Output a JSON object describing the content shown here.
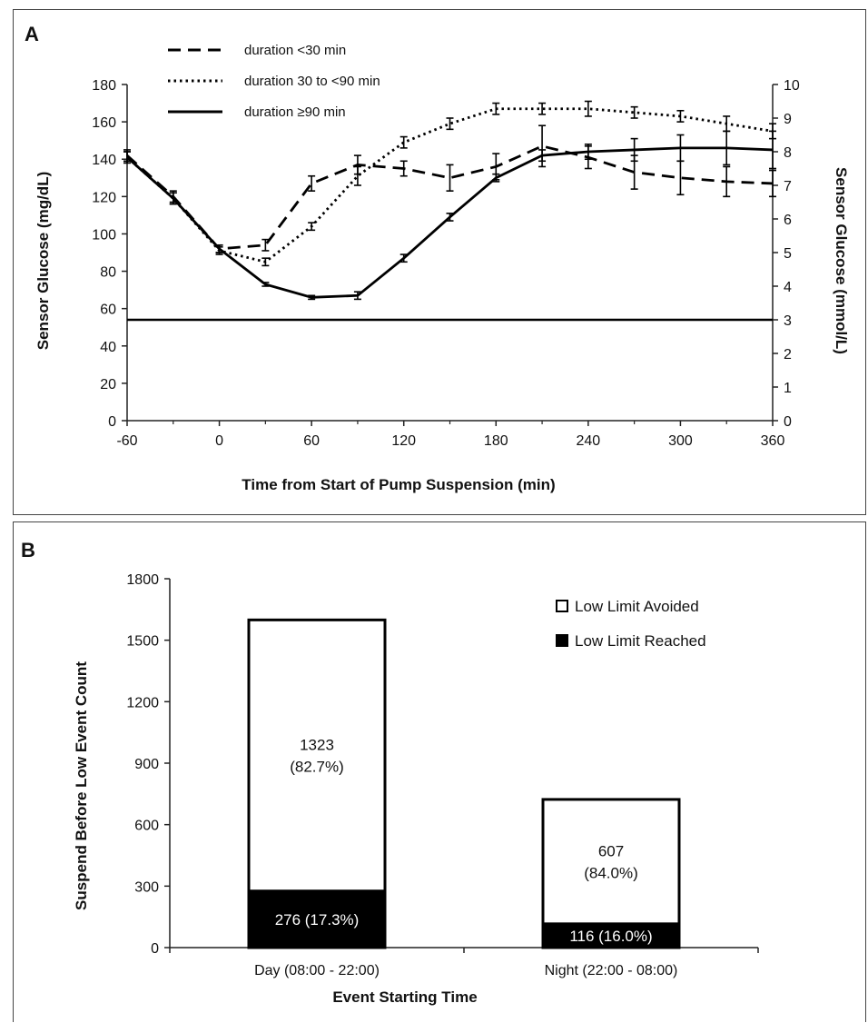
{
  "chart_data": [
    {
      "panel_label": "A",
      "type": "line",
      "xlabel": "Time from Start of Pump Suspension (min)",
      "ylabel": "Sensor Glucose (mg/dL)",
      "y2label": "Sensor Glucose (mmol/L)",
      "xlim": [
        -60,
        360
      ],
      "ylim": [
        0,
        180
      ],
      "y2lim": [
        0,
        10
      ],
      "xticks": [
        "-60",
        "0",
        "60",
        "120",
        "180",
        "240",
        "300",
        "360"
      ],
      "yticks": [
        "0",
        "20",
        "40",
        "60",
        "80",
        "100",
        "120",
        "140",
        "160",
        "180"
      ],
      "y2ticks": [
        "0",
        "1",
        "2",
        "3",
        "4",
        "5",
        "6",
        "7",
        "8",
        "9",
        "10"
      ],
      "threshold_line": 54,
      "legend_position": "top-left",
      "series": [
        {
          "name": "duration <30 min",
          "style": "dashed",
          "x": [
            -60,
            -30,
            0,
            30,
            60,
            90,
            120,
            150,
            180,
            210,
            240,
            270,
            300,
            330,
            360
          ],
          "y": [
            142,
            120,
            92,
            94,
            127,
            137,
            135,
            130,
            136,
            147,
            141,
            133,
            130,
            128,
            127
          ],
          "err": [
            3,
            3,
            2,
            3,
            4,
            5,
            4,
            7,
            7,
            11,
            6,
            9,
            9,
            8,
            7
          ]
        },
        {
          "name": "duration 30 to <90 min",
          "style": "dotted",
          "x": [
            -60,
            -30,
            0,
            30,
            60,
            90,
            120,
            150,
            180,
            210,
            240,
            270,
            300,
            330,
            360
          ],
          "y": [
            141,
            119,
            91,
            85,
            104,
            131,
            149,
            159,
            167,
            167,
            167,
            165,
            163,
            159,
            155
          ],
          "err": [
            3,
            3,
            2,
            2,
            2,
            5,
            3,
            3,
            3,
            3,
            4,
            3,
            3,
            4,
            4
          ]
        },
        {
          "name": "duration ≥90  min",
          "style": "solid",
          "x": [
            -60,
            -30,
            0,
            30,
            60,
            90,
            120,
            150,
            180,
            210,
            240,
            270,
            300,
            330,
            360
          ],
          "y": [
            141,
            119,
            92,
            73,
            66,
            67,
            87,
            109,
            130,
            142,
            144,
            145,
            146,
            146,
            145
          ],
          "err": [
            3,
            3,
            2,
            1,
            1,
            2,
            2,
            2,
            2,
            3,
            4,
            6,
            7,
            9,
            10
          ]
        }
      ]
    },
    {
      "panel_label": "B",
      "type": "bar",
      "stacked": true,
      "xlabel": "Event Starting Time",
      "ylabel": "Suspend Before Low Event Count",
      "ylim": [
        0,
        1800
      ],
      "yticks": [
        "0",
        "300",
        "600",
        "900",
        "1200",
        "1500",
        "1800"
      ],
      "categories": [
        "Day (08:00 - 22:00)",
        "Night (22:00 - 08:00)"
      ],
      "legend_position": "top-right",
      "series": [
        {
          "name": "Low Limit Reached",
          "color": "#000000",
          "values": [
            276,
            116
          ],
          "labels": [
            "276 (17.3%)",
            "116 (16.0%)"
          ]
        },
        {
          "name": "Low Limit Avoided",
          "color": "#ffffff",
          "values": [
            1323,
            607
          ],
          "labels": [
            "1323",
            "607"
          ],
          "sublabels": [
            "(82.7%)",
            "(84.0%)"
          ]
        }
      ]
    }
  ]
}
